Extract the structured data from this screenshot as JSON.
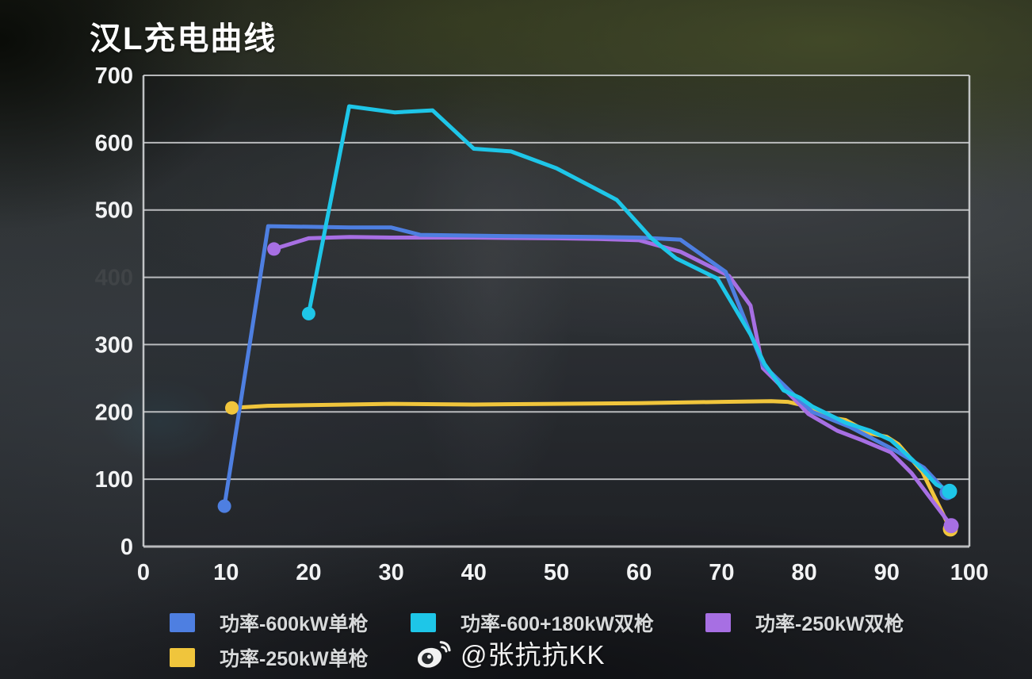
{
  "page": {
    "title": "汉L充电曲线"
  },
  "watermark": {
    "text": "@张抗抗KK",
    "icon": "weibo-icon"
  },
  "colors": {
    "background": "#26292c",
    "grid": "#d2d4d6",
    "axis_label": "#f2f3f4",
    "legend_label": "#d8dadb",
    "faded_tick": "#8a8a8a"
  },
  "chart_data": {
    "type": "line",
    "title": "汉L充电曲线",
    "xlabel": "",
    "ylabel": "",
    "x_axis": {
      "min": 0,
      "max": 100,
      "ticks": [
        0,
        10,
        20,
        30,
        40,
        50,
        60,
        70,
        80,
        90,
        100
      ]
    },
    "y_axis": {
      "min": 0,
      "max": 700,
      "ticks": [
        0,
        100,
        200,
        300,
        400,
        500,
        600,
        700
      ],
      "faded_ticks": [
        400
      ]
    },
    "grid": "horizontal",
    "legend_position": "bottom",
    "series": [
      {
        "name": "功率-600kW单枪",
        "color": "#4E7FE1",
        "start_dot": true,
        "end_dot": true,
        "points": [
          [
            9.8,
            60
          ],
          [
            15.1,
            476
          ],
          [
            25,
            474
          ],
          [
            30,
            474
          ],
          [
            33.5,
            463
          ],
          [
            45,
            461
          ],
          [
            55,
            460
          ],
          [
            60,
            459
          ],
          [
            65,
            456
          ],
          [
            70.5,
            408
          ],
          [
            75,
            270
          ],
          [
            79.3,
            219
          ],
          [
            81,
            200
          ],
          [
            85.5,
            178
          ],
          [
            91,
            143
          ],
          [
            94.5,
            117
          ],
          [
            97.3,
            80
          ]
        ]
      },
      {
        "name": "功率-600+180kW双枪",
        "color": "#1EC6E8",
        "start_dot": true,
        "end_dot": true,
        "points": [
          [
            20,
            346
          ],
          [
            24.9,
            654
          ],
          [
            30.4,
            645
          ],
          [
            35,
            648
          ],
          [
            40,
            591
          ],
          [
            44.5,
            587
          ],
          [
            50,
            562
          ],
          [
            55,
            530
          ],
          [
            57.3,
            515
          ],
          [
            61.5,
            458
          ],
          [
            64.5,
            428
          ],
          [
            69.5,
            398
          ],
          [
            73.5,
            315
          ],
          [
            75.2,
            271
          ],
          [
            77.5,
            232
          ],
          [
            79.5,
            221
          ],
          [
            81,
            208
          ],
          [
            85,
            184
          ],
          [
            88,
            172
          ],
          [
            90.5,
            158
          ],
          [
            93,
            130
          ],
          [
            94.5,
            112
          ],
          [
            96,
            92
          ],
          [
            97.6,
            82
          ]
        ]
      },
      {
        "name": "功率-250kW双枪",
        "color": "#A76FE3",
        "start_dot": true,
        "end_dot": true,
        "points": [
          [
            15.8,
            442
          ],
          [
            20,
            458
          ],
          [
            25,
            460
          ],
          [
            30,
            459
          ],
          [
            40,
            459
          ],
          [
            50,
            458
          ],
          [
            55,
            457
          ],
          [
            60,
            455
          ],
          [
            65,
            438
          ],
          [
            70.9,
            402
          ],
          [
            73.5,
            358
          ],
          [
            75,
            265
          ],
          [
            79.3,
            213
          ],
          [
            80.5,
            197
          ],
          [
            84,
            172
          ],
          [
            87,
            158
          ],
          [
            90.5,
            140
          ],
          [
            93,
            109
          ],
          [
            97.8,
            31
          ]
        ]
      },
      {
        "name": "功率-250kW单枪",
        "color": "#F0C53C",
        "start_dot": true,
        "end_dot": true,
        "points": [
          [
            10.7,
            206
          ],
          [
            15,
            209
          ],
          [
            20,
            210
          ],
          [
            30,
            212
          ],
          [
            40,
            211
          ],
          [
            50,
            212
          ],
          [
            60,
            213
          ],
          [
            70,
            215
          ],
          [
            76,
            216
          ],
          [
            78,
            215
          ],
          [
            79.8,
            210
          ],
          [
            83,
            192
          ],
          [
            85,
            188
          ],
          [
            88,
            168
          ],
          [
            90,
            163
          ],
          [
            91.4,
            152
          ],
          [
            94.3,
            111
          ],
          [
            97.7,
            26
          ]
        ]
      }
    ]
  }
}
